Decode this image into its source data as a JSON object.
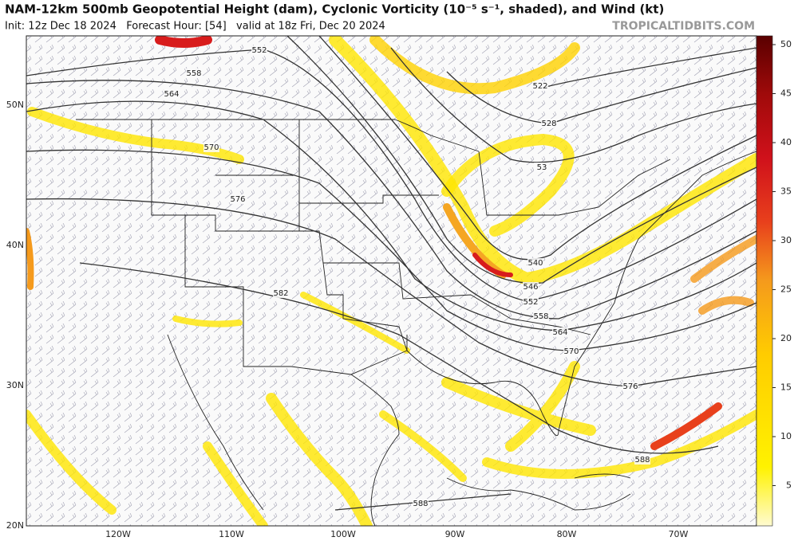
{
  "header": {
    "title": "NAM-12km 500mb Geopotential Height (dam), Cyclonic Vorticity (10⁻⁵ s⁻¹, shaded), and Wind (kt)",
    "subtitle": "Init: 12z Dec 18 2024   Forecast Hour: [54]   valid at 18z Fri, Dec 20 2024",
    "brand": "TROPICALTIDBITS.COM"
  },
  "map": {
    "lat_labels": [
      "50N",
      "40N",
      "30N",
      "20N"
    ],
    "lon_labels": [
      "120W",
      "110W",
      "100W",
      "90W",
      "80W",
      "70W"
    ],
    "contour_labels": [
      "552",
      "558",
      "564",
      "570",
      "576",
      "582",
      "522",
      "528",
      "53",
      "540",
      "546",
      "552",
      "558",
      "564",
      "570",
      "576",
      "588",
      "588"
    ]
  },
  "colorbar": {
    "ticks": [
      5,
      10,
      15,
      20,
      25,
      30,
      35,
      40,
      45,
      50
    ]
  }
}
